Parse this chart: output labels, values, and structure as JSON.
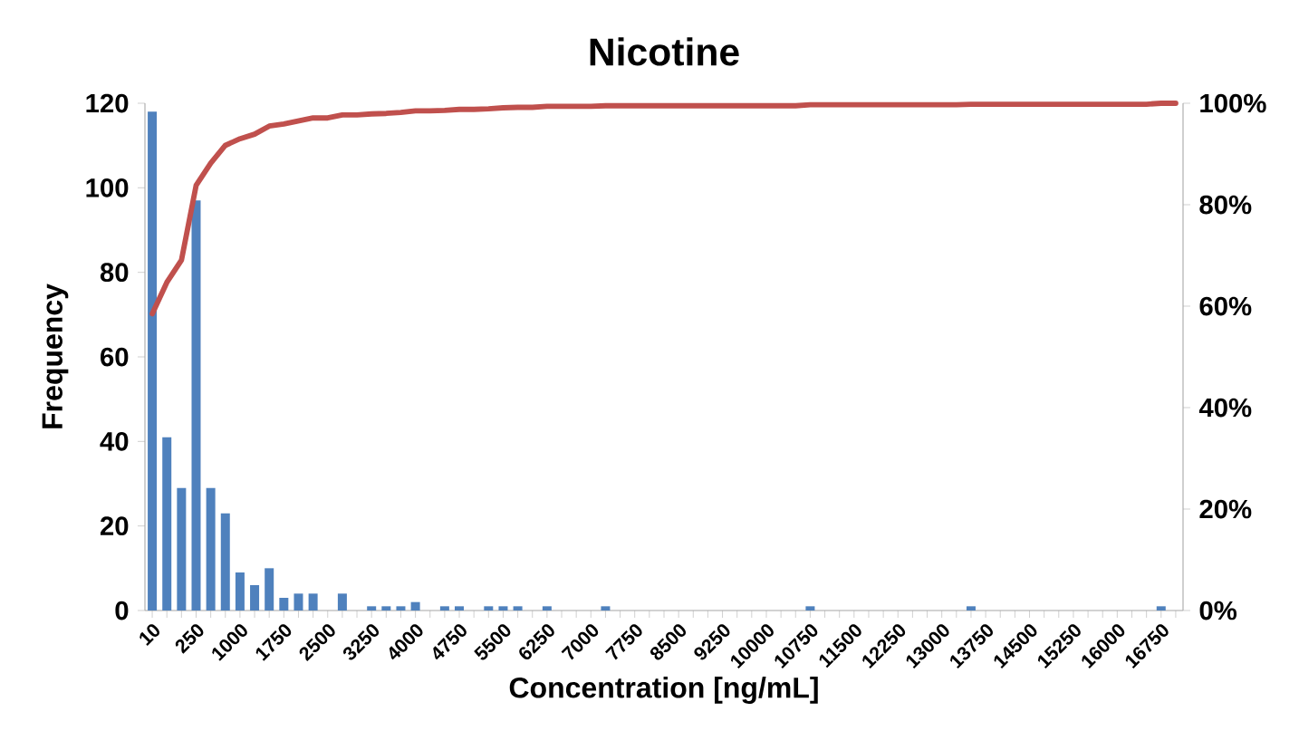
{
  "chart_data": {
    "type": "bar",
    "title": "Nicotine",
    "xlabel": "Concentration [ng/mL]",
    "ylabel": "Frequency",
    "categories": [
      "10",
      null,
      null,
      "250",
      null,
      null,
      "1000",
      null,
      null,
      "1750",
      null,
      null,
      "2500",
      null,
      null,
      "3250",
      null,
      null,
      "4000",
      null,
      null,
      "4750",
      null,
      null,
      "5500",
      null,
      null,
      "6250",
      null,
      null,
      "7000",
      null,
      null,
      "7750",
      null,
      null,
      "8500",
      null,
      null,
      "9250",
      null,
      null,
      "10000",
      null,
      null,
      "10750",
      null,
      null,
      "11500",
      null,
      null,
      "12250",
      null,
      null,
      "13000",
      null,
      null,
      "13750",
      null,
      null,
      "14500",
      null,
      null,
      "15250",
      null,
      null,
      "16000",
      null,
      null,
      "16750",
      null
    ],
    "series": [
      {
        "color": "#4f81bd",
        "values": [
          118,
          41,
          29,
          97,
          29,
          23,
          9,
          6,
          10,
          3,
          4,
          4,
          0,
          4,
          0,
          1,
          1,
          1,
          2,
          0,
          1,
          1,
          0,
          1,
          1,
          1,
          0,
          1,
          0,
          0,
          0,
          1,
          0,
          0,
          0,
          0,
          0,
          0,
          0,
          0,
          0,
          0,
          0,
          0,
          0,
          1,
          0,
          0,
          0,
          0,
          0,
          0,
          0,
          0,
          0,
          0,
          1,
          0,
          0,
          0,
          0,
          0,
          0,
          0,
          0,
          0,
          0,
          0,
          0,
          1,
          0
        ]
      },
      {
        "type": "line",
        "axis": "y2",
        "color": "#c0504d",
        "values": [
          58.5,
          64.7,
          69.1,
          83.8,
          88.2,
          91.7,
          93.0,
          93.9,
          95.5,
          95.9,
          96.5,
          97.1,
          97.1,
          97.7,
          97.7,
          97.9,
          98.0,
          98.2,
          98.5,
          98.5,
          98.6,
          98.8,
          98.8,
          98.9,
          99.1,
          99.2,
          99.2,
          99.4,
          99.4,
          99.4,
          99.4,
          99.5,
          99.5,
          99.5,
          99.5,
          99.5,
          99.5,
          99.5,
          99.5,
          99.5,
          99.5,
          99.5,
          99.5,
          99.5,
          99.5,
          99.7,
          99.7,
          99.7,
          99.7,
          99.7,
          99.7,
          99.7,
          99.7,
          99.7,
          99.7,
          99.7,
          99.8,
          99.8,
          99.8,
          99.8,
          99.8,
          99.8,
          99.8,
          99.8,
          99.8,
          99.8,
          99.8,
          99.8,
          99.8,
          100,
          100
        ]
      }
    ],
    "ylim": [
      0,
      120
    ],
    "yticks": [
      0,
      20,
      40,
      60,
      80,
      100,
      120
    ],
    "y2lim": [
      0,
      100
    ],
    "y2ticks": [
      {
        "value": 0,
        "label": "0%"
      },
      {
        "value": 20,
        "label": "20%"
      },
      {
        "value": 40,
        "label": "40%"
      },
      {
        "value": 60,
        "label": "60%"
      },
      {
        "value": 80,
        "label": "80%"
      },
      {
        "value": 100,
        "label": "100%"
      }
    ],
    "grid": false,
    "legend": false,
    "marker": "none"
  }
}
